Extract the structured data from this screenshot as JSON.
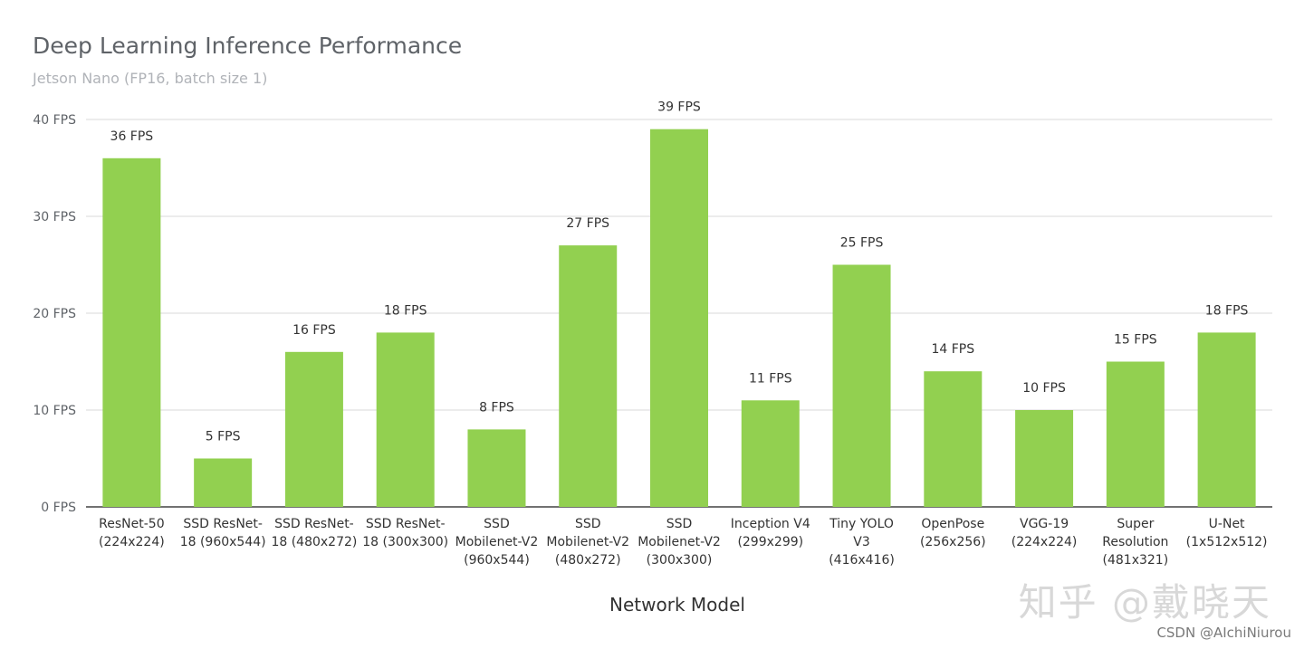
{
  "chart_data": {
    "type": "bar",
    "title": "Deep Learning Inference Performance",
    "subtitle": "Jetson Nano (FP16, batch size 1)",
    "xlabel": "Network Model",
    "ylabel": "",
    "ylim": [
      0,
      40
    ],
    "yticks": [
      {
        "value": 0,
        "label": "0 FPS"
      },
      {
        "value": 10,
        "label": "10 FPS"
      },
      {
        "value": 20,
        "label": "20 FPS"
      },
      {
        "value": 30,
        "label": "30 FPS"
      },
      {
        "value": 40,
        "label": "40 FPS"
      }
    ],
    "grid": true,
    "bar_color": "#92d050",
    "categories": [
      [
        "ResNet-50",
        "(224x224)"
      ],
      [
        "SSD ResNet-",
        "18 (960x544)"
      ],
      [
        "SSD ResNet-",
        "18 (480x272)"
      ],
      [
        "SSD ResNet-",
        "18 (300x300)"
      ],
      [
        "SSD",
        "Mobilenet-V2",
        "(960x544)"
      ],
      [
        "SSD",
        "Mobilenet-V2",
        "(480x272)"
      ],
      [
        "SSD",
        "Mobilenet-V2",
        "(300x300)"
      ],
      [
        "Inception V4",
        "(299x299)"
      ],
      [
        "Tiny YOLO",
        "V3",
        "(416x416)"
      ],
      [
        "OpenPose",
        "(256x256)"
      ],
      [
        "VGG-19",
        "(224x224)"
      ],
      [
        "Super",
        "Resolution",
        "(481x321)"
      ],
      [
        "U-Net",
        "(1x512x512)"
      ]
    ],
    "values": [
      36,
      5,
      16,
      18,
      8,
      27,
      39,
      11,
      25,
      14,
      10,
      15,
      18
    ],
    "data_labels": [
      "36 FPS",
      "5 FPS",
      "16 FPS",
      "18 FPS",
      "8 FPS",
      "27 FPS",
      "39 FPS",
      "11 FPS",
      "25 FPS",
      "14 FPS",
      "10 FPS",
      "15 FPS",
      "18 FPS"
    ]
  },
  "watermark": {
    "line1": "知乎 @戴晓天",
    "line2": "CSDN @AIchiNiurou"
  }
}
